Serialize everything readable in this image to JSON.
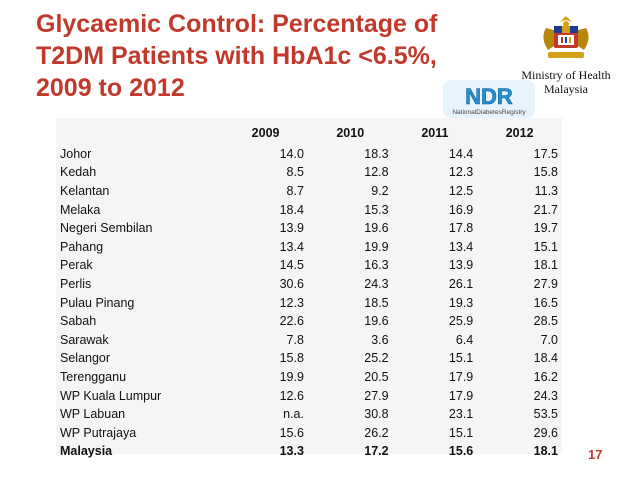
{
  "slide": {
    "title_lines": [
      "Glycaemic Control: Percentage of",
      "T2DM Patients with HbA1c <6.5%,",
      "2009 to 2012"
    ],
    "ministry_lines": [
      "Ministry of Health",
      "Malaysia"
    ],
    "ndr_logo_text": "NDR",
    "ndr_logo_subtext": "NationalDiabetesRegistry",
    "page_number": "17",
    "title_color": "#c0392b"
  },
  "table": {
    "headers": [
      "",
      "2009",
      "2010",
      "2011",
      "2012"
    ],
    "rows": [
      [
        "Johor",
        "14.0",
        "18.3",
        "14.4",
        "17.5"
      ],
      [
        "Kedah",
        "8.5",
        "12.8",
        "12.3",
        "15.8"
      ],
      [
        "Kelantan",
        "8.7",
        "9.2",
        "12.5",
        "11.3"
      ],
      [
        "Melaka",
        "18.4",
        "15.3",
        "16.9",
        "21.7"
      ],
      [
        "Negeri Sembilan",
        "13.9",
        "19.6",
        "17.8",
        "19.7"
      ],
      [
        "Pahang",
        "13.4",
        "19.9",
        "13.4",
        "15.1"
      ],
      [
        "Perak",
        "14.5",
        "16.3",
        "13.9",
        "18.1"
      ],
      [
        "Perlis",
        "30.6",
        "24.3",
        "26.1",
        "27.9"
      ],
      [
        "Pulau Pinang",
        "12.3",
        "18.5",
        "19.3",
        "16.5"
      ],
      [
        "Sabah",
        "22.6",
        "19.6",
        "25.9",
        "28.5"
      ],
      [
        "Sarawak",
        "7.8",
        "3.6",
        "6.4",
        "7.0"
      ],
      [
        "Selangor",
        "15.8",
        "25.2",
        "15.1",
        "18.4"
      ],
      [
        "Terengganu",
        "19.9",
        "20.5",
        "17.9",
        "16.2"
      ],
      [
        "WP Kuala Lumpur",
        "12.6",
        "27.9",
        "17.9",
        "24.3"
      ],
      [
        "WP Labuan",
        "n.a.",
        "30.8",
        "23.1",
        "53.5"
      ],
      [
        "WP Putrajaya",
        "15.6",
        "26.2",
        "15.1",
        "29.6"
      ]
    ],
    "total_row": [
      "Malaysia",
      "13.3",
      "17.2",
      "15.6",
      "18.1"
    ]
  }
}
